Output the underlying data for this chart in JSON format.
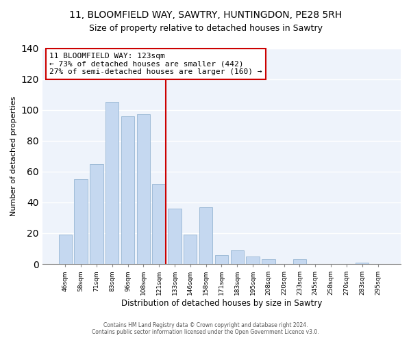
{
  "title": "11, BLOOMFIELD WAY, SAWTRY, HUNTINGDON, PE28 5RH",
  "subtitle": "Size of property relative to detached houses in Sawtry",
  "xlabel": "Distribution of detached houses by size in Sawtry",
  "ylabel": "Number of detached properties",
  "bar_labels": [
    "46sqm",
    "58sqm",
    "71sqm",
    "83sqm",
    "96sqm",
    "108sqm",
    "121sqm",
    "133sqm",
    "146sqm",
    "158sqm",
    "171sqm",
    "183sqm",
    "195sqm",
    "208sqm",
    "220sqm",
    "233sqm",
    "245sqm",
    "258sqm",
    "270sqm",
    "283sqm",
    "295sqm"
  ],
  "bar_values": [
    19,
    55,
    65,
    105,
    96,
    97,
    52,
    36,
    19,
    37,
    6,
    9,
    5,
    3,
    0,
    3,
    0,
    0,
    0,
    1,
    0
  ],
  "bar_color": "#c5d8f0",
  "bar_edge_color": "#a0bcd8",
  "vline_x_idx": 6,
  "vline_color": "#cc0000",
  "annotation_line1": "11 BLOOMFIELD WAY: 123sqm",
  "annotation_line2": "← 73% of detached houses are smaller (442)",
  "annotation_line3": "27% of semi-detached houses are larger (160) →",
  "annotation_box_color": "#ffffff",
  "annotation_box_edge": "#cc0000",
  "ylim": [
    0,
    140
  ],
  "footer1": "Contains HM Land Registry data © Crown copyright and database right 2024.",
  "footer2": "Contains public sector information licensed under the Open Government Licence v3.0.",
  "plot_bg_color": "#eef3fb",
  "fig_bg_color": "#ffffff",
  "grid_color": "#ffffff",
  "title_fontsize": 10,
  "subtitle_fontsize": 9
}
